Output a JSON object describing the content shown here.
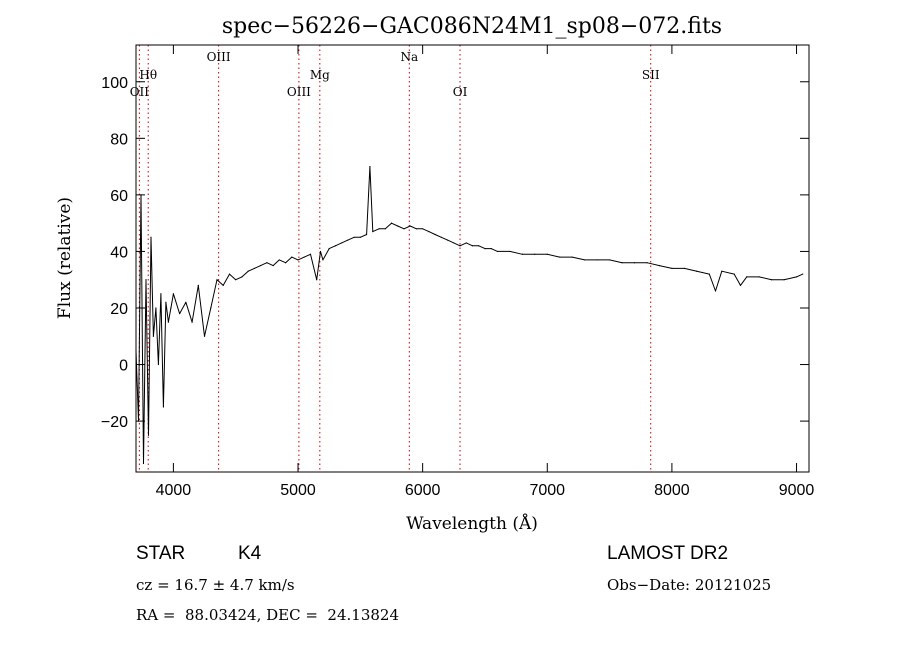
{
  "chart_data": {
    "type": "line",
    "title": "spec−56226−GAC086N24M1_sp08−072.fits",
    "xlabel": "Wavelength (Å)",
    "ylabel": "Flux (relative)",
    "xlim": [
      3700,
      9100
    ],
    "ylim": [
      -38,
      113
    ],
    "xticks": [
      4000,
      5000,
      6000,
      7000,
      8000,
      9000
    ],
    "yticks": [
      -20,
      0,
      20,
      40,
      60,
      80,
      100
    ],
    "grid": false,
    "line_color": "#000000",
    "marker_color": "#cc0000",
    "series": [
      {
        "x": [
          3700,
          3720,
          3740,
          3760,
          3780,
          3800,
          3820,
          3840,
          3860,
          3880,
          3900,
          3920,
          3940,
          3960,
          3980,
          4000,
          4050,
          4100,
          4150,
          4200,
          4250,
          4300,
          4350,
          4400,
          4450,
          4500,
          4550,
          4600,
          4650,
          4700,
          4750,
          4800,
          4850,
          4900,
          4950,
          5000,
          5050,
          5100,
          5150,
          5180,
          5200,
          5250,
          5300,
          5350,
          5400,
          5450,
          5500,
          5550,
          5577,
          5600,
          5650,
          5700,
          5750,
          5800,
          5850,
          5900,
          5950,
          6000,
          6050,
          6100,
          6150,
          6200,
          6250,
          6300,
          6350,
          6400,
          6450,
          6500,
          6550,
          6600,
          6700,
          6800,
          6900,
          7000,
          7100,
          7200,
          7300,
          7400,
          7500,
          7600,
          7700,
          7800,
          7900,
          8000,
          8100,
          8200,
          8300,
          8350,
          8400,
          8500,
          8550,
          8600,
          8700,
          8800,
          8900,
          9000,
          9050
        ],
        "y": [
          5,
          -20,
          60,
          -35,
          30,
          -25,
          45,
          10,
          20,
          0,
          25,
          -15,
          22,
          15,
          20,
          25,
          18,
          22,
          15,
          28,
          10,
          20,
          30,
          28,
          32,
          30,
          31,
          33,
          34,
          35,
          36,
          35,
          37,
          36,
          38,
          37,
          38,
          39,
          30,
          40,
          37,
          41,
          42,
          43,
          44,
          45,
          45,
          46,
          70,
          47,
          48,
          48,
          50,
          49,
          48,
          49,
          48,
          48,
          47,
          46,
          45,
          44,
          43,
          42,
          43,
          42,
          42,
          41,
          41,
          40,
          40,
          39,
          39,
          39,
          38,
          38,
          37,
          37,
          37,
          36,
          36,
          36,
          35,
          34,
          34,
          33,
          32,
          26,
          33,
          32,
          28,
          31,
          31,
          30,
          30,
          31,
          32
        ]
      }
    ],
    "line_markers": [
      {
        "label": "Hθ",
        "x": 3798,
        "label_row": "upper"
      },
      {
        "label": "OII",
        "x": 3727,
        "label_row": "lower"
      },
      {
        "label": "OIII",
        "x": 4363,
        "label_row": "top"
      },
      {
        "label": "OIII",
        "x": 5007,
        "label_row": "lower"
      },
      {
        "label": "Mg",
        "x": 5175,
        "label_row": "upper"
      },
      {
        "label": "Na",
        "x": 5893,
        "label_row": "top"
      },
      {
        "label": "OI",
        "x": 6300,
        "label_row": "lower"
      },
      {
        "label": "SII",
        "x": 7830,
        "label_row": "upper"
      }
    ]
  },
  "info": {
    "object_class": "STAR",
    "subclass": "K4",
    "survey": "LAMOST DR2",
    "cz": "cz = 16.7 ± 4.7 km/s",
    "obs_date": "Obs−Date: 20121025",
    "coords": "RA =  88.03424, DEC =  24.13824"
  }
}
